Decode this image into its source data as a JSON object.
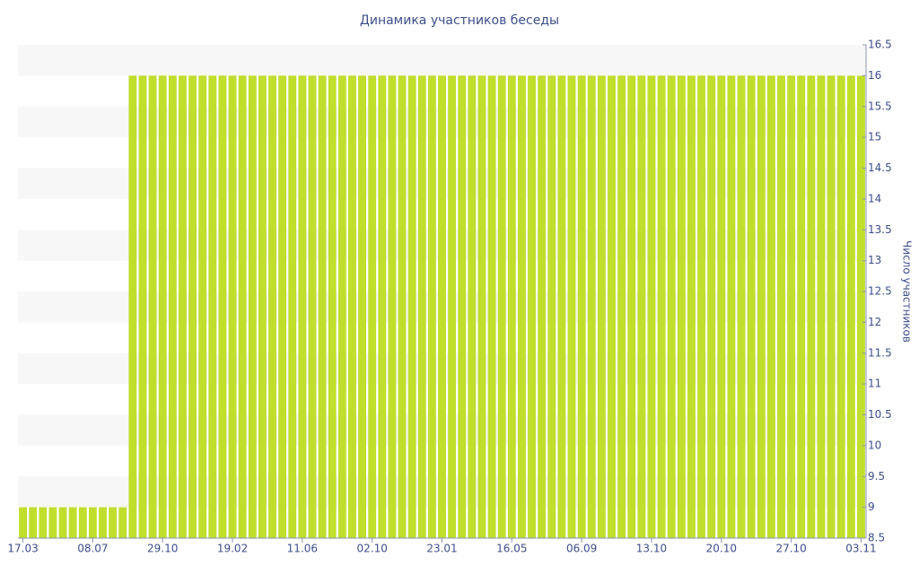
{
  "chart_data": {
    "type": "bar",
    "title": "Динамика участников беседы",
    "y_axis_label": "Число участников",
    "categories": [
      "17.03",
      null,
      null,
      null,
      null,
      null,
      null,
      "08.07",
      null,
      null,
      null,
      null,
      null,
      null,
      "29.10",
      null,
      null,
      null,
      null,
      null,
      null,
      "19.02",
      null,
      null,
      null,
      null,
      null,
      null,
      "11.06",
      null,
      null,
      null,
      null,
      null,
      null,
      "02.10",
      null,
      null,
      null,
      null,
      null,
      null,
      "23.01",
      null,
      null,
      null,
      null,
      null,
      null,
      "16.05",
      null,
      null,
      null,
      null,
      null,
      null,
      "06.09",
      null,
      null,
      null,
      null,
      null,
      null,
      "13.10",
      null,
      null,
      null,
      null,
      null,
      null,
      "20.10",
      null,
      null,
      null,
      null,
      null,
      null,
      "27.10",
      null,
      null,
      null,
      null,
      null,
      null,
      "03.11"
    ],
    "values": [
      9,
      9,
      9,
      9,
      9,
      9,
      9,
      9,
      9,
      9,
      9,
      16,
      16,
      16,
      16,
      16,
      16,
      16,
      16,
      16,
      16,
      16,
      16,
      16,
      16,
      16,
      16,
      16,
      16,
      16,
      16,
      16,
      16,
      16,
      16,
      16,
      16,
      16,
      16,
      16,
      16,
      16,
      16,
      16,
      16,
      16,
      16,
      16,
      16,
      16,
      16,
      16,
      16,
      16,
      16,
      16,
      16,
      16,
      16,
      16,
      16,
      16,
      16,
      16,
      16,
      16,
      16,
      16,
      16,
      16,
      16,
      16,
      16,
      16,
      16,
      16,
      16,
      16,
      16,
      16,
      16,
      16,
      16,
      16,
      16
    ],
    "color": "#c0de2c",
    "ylim": [
      8.5,
      16.5
    ],
    "yticks": [
      8.5,
      9,
      9.5,
      10,
      10.5,
      11,
      11.5,
      12,
      12.5,
      13,
      13.5,
      14,
      14.5,
      15,
      15.5,
      16,
      16.5
    ],
    "y_axis_side": "right",
    "grid": "bands"
  }
}
